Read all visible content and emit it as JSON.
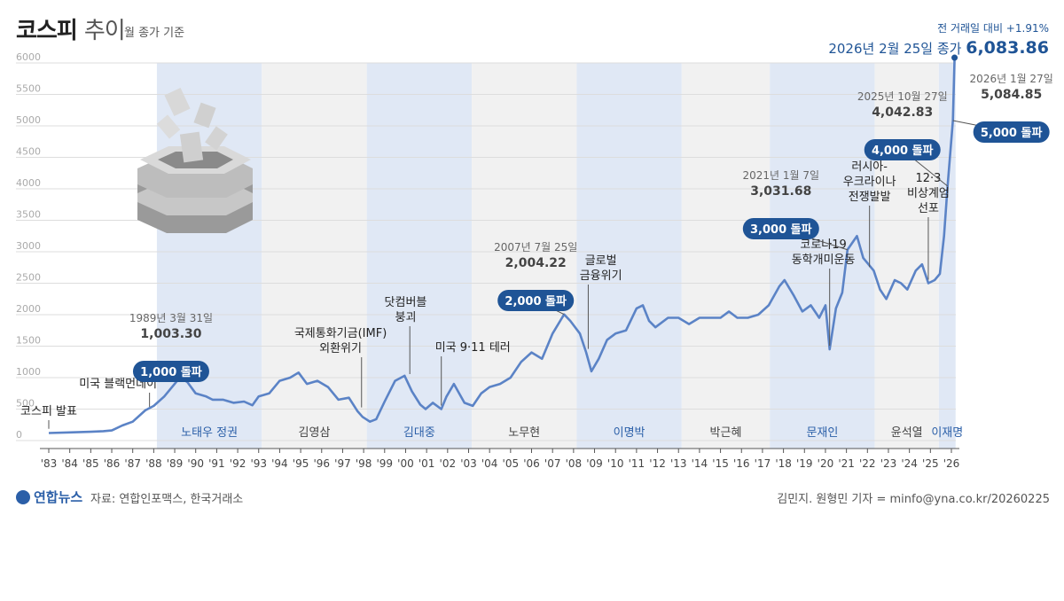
{
  "header": {
    "title_bold": "코스피",
    "title_light": "추이",
    "subtitle": "월 종가 기준"
  },
  "footer": {
    "logo": "연합뉴스",
    "source": "자료: 연합인포맥스, 한국거래소",
    "credit": "김민지. 원형민 기자 = minfo@yna.co.kr/20260225"
  },
  "colors": {
    "line": "#5b83c6",
    "band_blue": "#dbe4f3",
    "band_gray": "#efefef",
    "badge": "#1f5496",
    "latest": "#1f5496"
  },
  "chart_data": {
    "type": "line",
    "title": "코스피 추이",
    "subtitle": "월 종가 기준",
    "ylim": [
      0,
      6000
    ],
    "yticks": [
      0,
      500,
      1000,
      1500,
      2000,
      2500,
      3000,
      3500,
      4000,
      4500,
      5000,
      5500,
      6000
    ],
    "xlim": [
      1983,
      2026.3
    ],
    "xticks": [
      "'83",
      "'84",
      "'85",
      "'86",
      "'87",
      "'88",
      "'89",
      "'90",
      "'91",
      "'92",
      "'93",
      "'94",
      "'95",
      "'96",
      "'97",
      "'98",
      "'99",
      "'00",
      "'01",
      "'02",
      "'03",
      "'04",
      "'05",
      "'06",
      "'07",
      "'08",
      "'09",
      "'10",
      "'11",
      "'12",
      "'13",
      "'14",
      "'15",
      "'16",
      "'17",
      "'18",
      "'19",
      "'20",
      "'21",
      "'22",
      "'23",
      "'24",
      "'25",
      "'26"
    ],
    "grid": true,
    "series": [
      {
        "x": [
          1983.0,
          1984.0,
          1985.0,
          1985.6,
          1986.0,
          1986.5,
          1987.0,
          1987.6,
          1988.0,
          1988.5,
          1989.0,
          1989.25,
          1989.6,
          1990.0,
          1990.5,
          1990.8,
          1991.3,
          1991.8,
          1992.3,
          1992.7,
          1993.0,
          1993.5,
          1994.0,
          1994.5,
          1994.9,
          1995.3,
          1995.8,
          1996.3,
          1996.8,
          1997.3,
          1997.7,
          1997.95,
          1998.3,
          1998.6,
          1999.0,
          1999.5,
          1999.95,
          2000.3,
          2000.7,
          2000.95,
          2001.3,
          2001.7,
          2001.95,
          2002.3,
          2002.8,
          2003.2,
          2003.6,
          2004.0,
          2004.5,
          2005.0,
          2005.5,
          2006.0,
          2006.5,
          2007.0,
          2007.55,
          2007.85,
          2008.3,
          2008.6,
          2008.85,
          2009.2,
          2009.6,
          2010.0,
          2010.5,
          2011.0,
          2011.3,
          2011.6,
          2011.9,
          2012.5,
          2013.0,
          2013.5,
          2014.0,
          2014.5,
          2015.0,
          2015.4,
          2015.8,
          2016.3,
          2016.8,
          2017.3,
          2017.8,
          2018.05,
          2018.5,
          2018.9,
          2019.3,
          2019.7,
          2020.0,
          2020.2,
          2020.5,
          2020.8,
          2021.05,
          2021.5,
          2021.8,
          2022.3,
          2022.6,
          2022.9,
          2023.3,
          2023.6,
          2023.9,
          2024.3,
          2024.6,
          2024.9,
          2025.2,
          2025.45,
          2025.65,
          2025.82,
          2026.07,
          2026.15
        ],
        "y": [
          120,
          130,
          140,
          150,
          160,
          240,
          300,
          480,
          550,
          700,
          900,
          1003.3,
          930,
          750,
          700,
          650,
          650,
          600,
          620,
          560,
          700,
          750,
          950,
          1000,
          1080,
          900,
          950,
          850,
          650,
          680,
          470,
          376,
          300,
          340,
          620,
          950,
          1030,
          780,
          570,
          500,
          600,
          500,
          700,
          900,
          600,
          550,
          750,
          850,
          900,
          1000,
          1250,
          1400,
          1300,
          1700,
          2004.22,
          1900,
          1700,
          1400,
          1100,
          1300,
          1600,
          1700,
          1750,
          2100,
          2150,
          1900,
          1800,
          1950,
          1950,
          1850,
          1950,
          1950,
          1950,
          2050,
          1950,
          1950,
          2000,
          2150,
          2450,
          2550,
          2300,
          2050,
          2150,
          1950,
          2150,
          1450,
          2100,
          2350,
          3031.68,
          3250,
          2900,
          2700,
          2400,
          2250,
          2550,
          2500,
          2400,
          2700,
          2800,
          2500,
          2550,
          2650,
          3250,
          4042.83,
          5084.85,
          6083.86
        ]
      }
    ],
    "eras": [
      {
        "label": "노태우 정권",
        "start": 1988.15,
        "end": 1993.15,
        "shade": "blue"
      },
      {
        "label": "김영삼",
        "start": 1993.15,
        "end": 1998.15,
        "shade": "gray"
      },
      {
        "label": "김대중",
        "start": 1998.15,
        "end": 2003.15,
        "shade": "blue"
      },
      {
        "label": "노무현",
        "start": 2003.15,
        "end": 2008.15,
        "shade": "gray"
      },
      {
        "label": "이명박",
        "start": 2008.15,
        "end": 2013.15,
        "shade": "blue"
      },
      {
        "label": "박근혜",
        "start": 2013.15,
        "end": 2017.35,
        "shade": "gray"
      },
      {
        "label": "문재인",
        "start": 2017.35,
        "end": 2022.35,
        "shade": "blue"
      },
      {
        "label": "윤석열",
        "start": 2022.35,
        "end": 2025.4,
        "shade": "gray"
      },
      {
        "label": "이재명",
        "start": 2025.4,
        "end": 2026.2,
        "shade": "blue"
      }
    ],
    "events": [
      {
        "text": [
          "코스피 발표"
        ],
        "x": 1983.0,
        "lx": 1983.0,
        "ly": 468,
        "y": 130
      },
      {
        "text": [
          "미국 블랙먼데이"
        ],
        "x": 1987.8,
        "lx": 1986.3,
        "ly": 437,
        "y": 480
      },
      {
        "text": [
          "국제통화기금(IMF)",
          "외환위기"
        ],
        "x": 1997.9,
        "lx": 1996.9,
        "ly": 380,
        "y": 470
      },
      {
        "text": [
          "닷컴버블",
          "붕괴"
        ],
        "x": 2000.2,
        "lx": 2000.0,
        "ly": 345,
        "y": 1000
      },
      {
        "text": [
          "미국 9·11 테러"
        ],
        "x": 2001.7,
        "lx": 2003.2,
        "ly": 396,
        "y": 500
      },
      {
        "text": [
          "글로벌",
          "금융위기"
        ],
        "x": 2008.7,
        "lx": 2009.3,
        "ly": 298,
        "y": 1400
      },
      {
        "text": [
          "코로나19",
          "동학개미운동"
        ],
        "x": 2020.2,
        "lx": 2019.9,
        "ly": 280,
        "y": 1450
      },
      {
        "text": [
          "러시아-",
          "우크라이나",
          "전쟁발발"
        ],
        "x": 2022.1,
        "lx": 2022.1,
        "ly": 192,
        "y": 2700
      },
      {
        "text": [
          "12·3",
          "비상계엄",
          "선포"
        ],
        "x": 2024.9,
        "lx": 2024.9,
        "ly": 205,
        "y": 2500
      }
    ],
    "milestones": [
      {
        "date": "1989년 3월 31일",
        "value": "1,003.30",
        "badge": "1,000 돌파",
        "x": 1989.25,
        "y": 1003.3
      },
      {
        "date": "2007년 7월 25일",
        "value": "2,004.22",
        "badge": "2,000 돌파",
        "x": 2007.55,
        "y": 2004.22
      },
      {
        "date": "2021년 1월 7일",
        "value": "3,031.68",
        "badge": "3,000 돌파",
        "x": 2021.05,
        "y": 3031.68
      },
      {
        "date": "2025년 10월 27일",
        "value": "4,042.83",
        "badge": "4,000 돌파",
        "x": 2025.82,
        "y": 4042.83
      },
      {
        "date": "2026년 1월 27일",
        "value": "5,084.85",
        "badge": "5,000 돌파",
        "x": 2026.07,
        "y": 5084.85
      }
    ],
    "latest": {
      "change": "전 거래일 대비 +1.91%",
      "date_label": "2026년 2월 25일 종가",
      "value": "6,083.86",
      "x": 2026.15,
      "y": 6083.86
    }
  }
}
